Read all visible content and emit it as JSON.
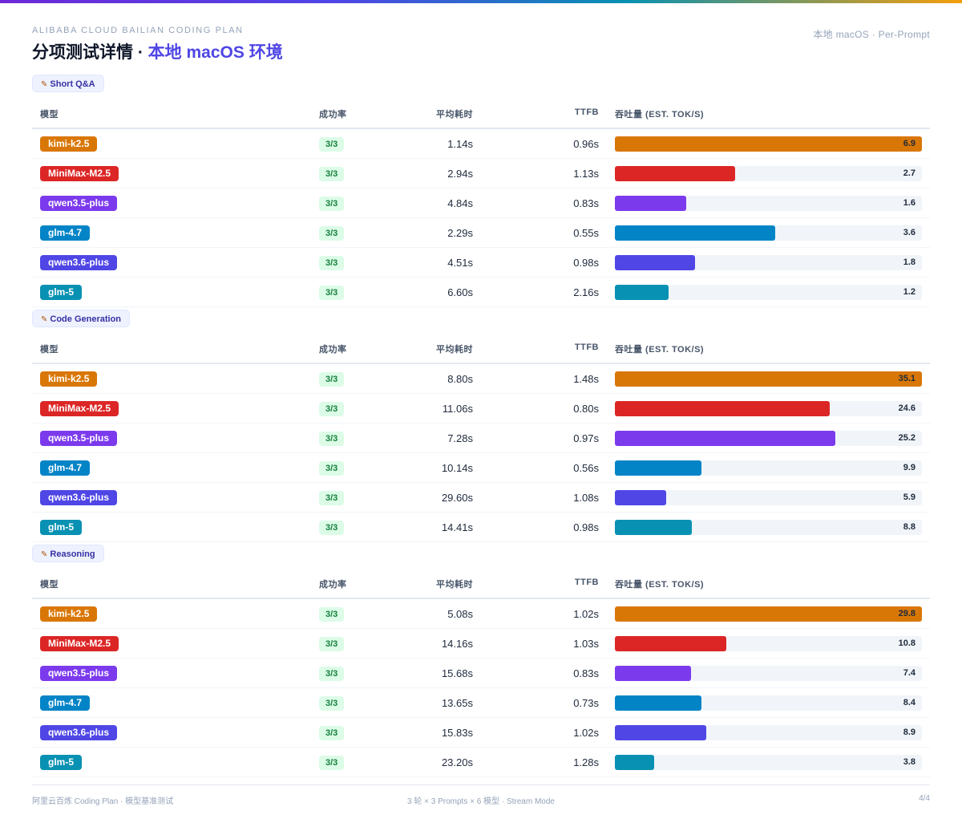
{
  "header": {
    "subtitle": "ALIBABA CLOUD BAILIAN CODING PLAN",
    "title_main": "分项测试详情 · ",
    "title_accent": "本地 macOS 环境",
    "tag": "本地 macOS · Per-Prompt"
  },
  "columns": {
    "model": "模型",
    "rate": "成功率",
    "avg": "平均耗时",
    "ttfb": "TTFB",
    "throughput": "吞吐量 (EST. TOK/S)"
  },
  "colors": {
    "kimi-k2.5": "#d97706",
    "MiniMax-M2.5": "#dc2626",
    "qwen3.5-plus": "#7c3aed",
    "glm-4.7": "#0284c7",
    "qwen3.6-plus": "#4f46e5",
    "glm-5": "#0891b2"
  },
  "sections": [
    {
      "label": "Short Q&A",
      "icon": "memo-icon",
      "max": 6.9,
      "rows": [
        {
          "model": "kimi-k2.5",
          "rate": "3/3",
          "avg": "1.14s",
          "ttfb": "0.96s",
          "throughput": 6.9
        },
        {
          "model": "MiniMax-M2.5",
          "rate": "3/3",
          "avg": "2.94s",
          "ttfb": "1.13s",
          "throughput": 2.7
        },
        {
          "model": "qwen3.5-plus",
          "rate": "3/3",
          "avg": "4.84s",
          "ttfb": "0.83s",
          "throughput": 1.6
        },
        {
          "model": "glm-4.7",
          "rate": "3/3",
          "avg": "2.29s",
          "ttfb": "0.55s",
          "throughput": 3.6
        },
        {
          "model": "qwen3.6-plus",
          "rate": "3/3",
          "avg": "4.51s",
          "ttfb": "0.98s",
          "throughput": 1.8
        },
        {
          "model": "glm-5",
          "rate": "3/3",
          "avg": "6.60s",
          "ttfb": "2.16s",
          "throughput": 1.2
        }
      ]
    },
    {
      "label": "Code Generation",
      "icon": "memo-icon",
      "max": 35.1,
      "rows": [
        {
          "model": "kimi-k2.5",
          "rate": "3/3",
          "avg": "8.80s",
          "ttfb": "1.48s",
          "throughput": 35.1
        },
        {
          "model": "MiniMax-M2.5",
          "rate": "3/3",
          "avg": "11.06s",
          "ttfb": "0.80s",
          "throughput": 24.6
        },
        {
          "model": "qwen3.5-plus",
          "rate": "3/3",
          "avg": "7.28s",
          "ttfb": "0.97s",
          "throughput": 25.2
        },
        {
          "model": "glm-4.7",
          "rate": "3/3",
          "avg": "10.14s",
          "ttfb": "0.56s",
          "throughput": 9.9
        },
        {
          "model": "qwen3.6-plus",
          "rate": "3/3",
          "avg": "29.60s",
          "ttfb": "1.08s",
          "throughput": 5.9
        },
        {
          "model": "glm-5",
          "rate": "3/3",
          "avg": "14.41s",
          "ttfb": "0.98s",
          "throughput": 8.8
        }
      ]
    },
    {
      "label": "Reasoning",
      "icon": "memo-icon",
      "max": 29.8,
      "rows": [
        {
          "model": "kimi-k2.5",
          "rate": "3/3",
          "avg": "5.08s",
          "ttfb": "1.02s",
          "throughput": 29.8
        },
        {
          "model": "MiniMax-M2.5",
          "rate": "3/3",
          "avg": "14.16s",
          "ttfb": "1.03s",
          "throughput": 10.8
        },
        {
          "model": "qwen3.5-plus",
          "rate": "3/3",
          "avg": "15.68s",
          "ttfb": "0.83s",
          "throughput": 7.4
        },
        {
          "model": "glm-4.7",
          "rate": "3/3",
          "avg": "13.65s",
          "ttfb": "0.73s",
          "throughput": 8.4
        },
        {
          "model": "qwen3.6-plus",
          "rate": "3/3",
          "avg": "15.83s",
          "ttfb": "1.02s",
          "throughput": 8.9
        },
        {
          "model": "glm-5",
          "rate": "3/3",
          "avg": "23.20s",
          "ttfb": "1.28s",
          "throughput": 3.8
        }
      ]
    }
  ],
  "footer": {
    "left": "阿里云百炼 Coding Plan · 模型基准测试",
    "center": "3 轮 × 3 Prompts × 6 模型 · Stream Mode",
    "right": "4/4"
  }
}
